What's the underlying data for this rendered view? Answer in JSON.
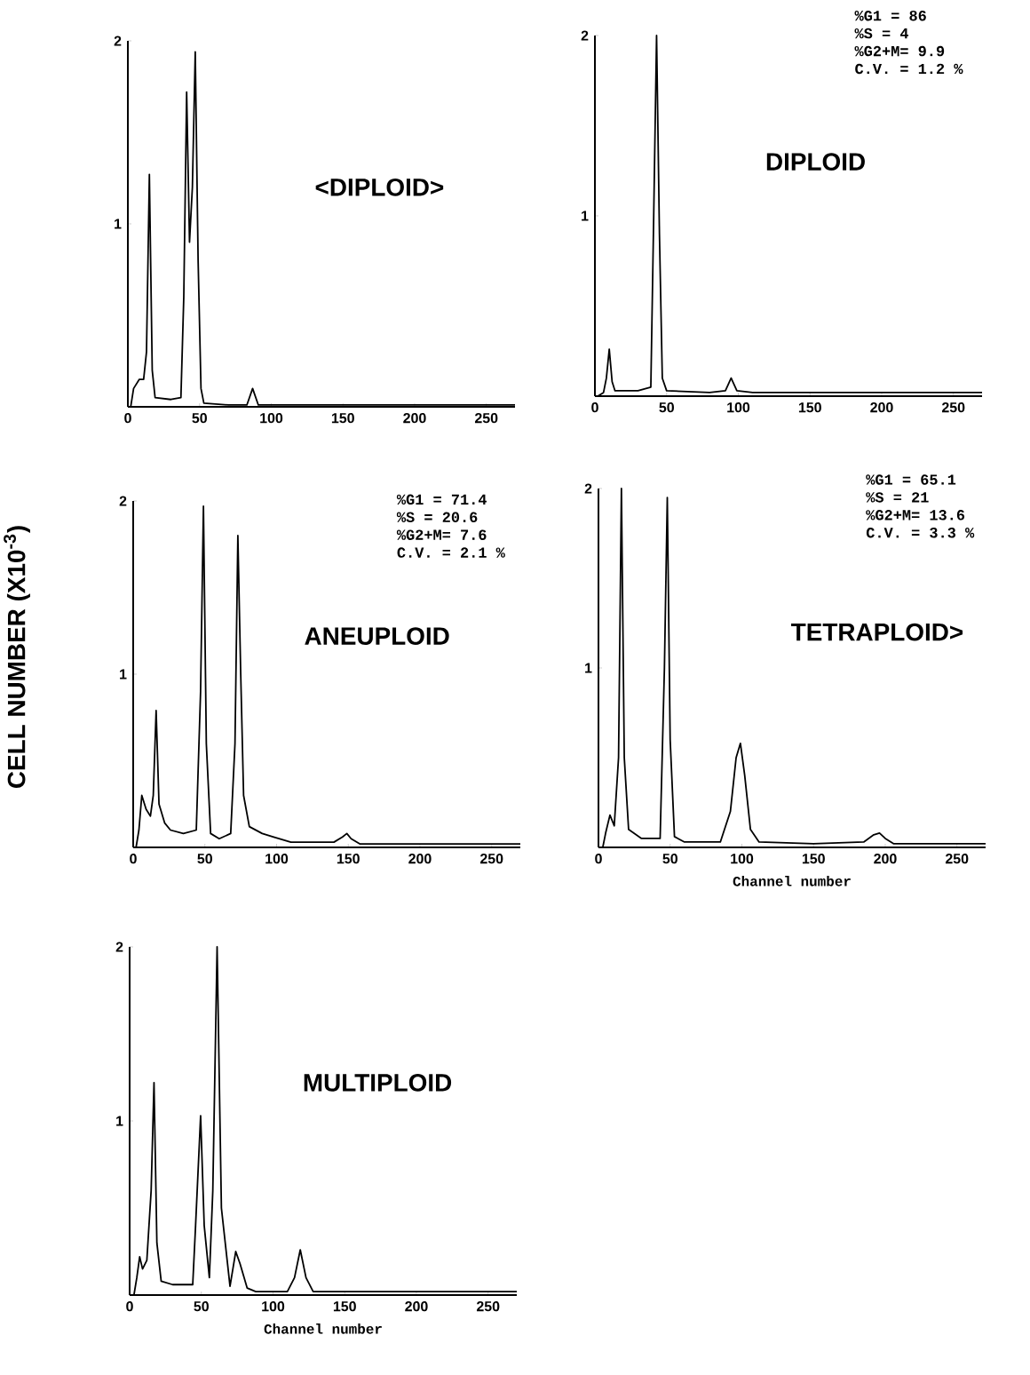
{
  "chart_data": [
    {
      "type": "line",
      "title": "<DIPLOID>",
      "xlim": [
        0,
        270
      ],
      "ylim": [
        0,
        2
      ],
      "xticks": [
        0,
        50,
        100,
        150,
        200,
        250
      ],
      "yticks": [
        1,
        2
      ],
      "series": [
        {
          "color": "#000000",
          "x": [
            2,
            4,
            8,
            11,
            13,
            15,
            17,
            19,
            30,
            37,
            39,
            41,
            43,
            45,
            47,
            49,
            51,
            53,
            70,
            83,
            87,
            91,
            150,
            270
          ],
          "values": [
            0,
            0.1,
            0.15,
            0.15,
            0.3,
            1.27,
            0.2,
            0.05,
            0.04,
            0.05,
            0.6,
            1.72,
            0.9,
            1.2,
            1.94,
            0.8,
            0.1,
            0.02,
            0.01,
            0.01,
            0.1,
            0.01,
            0.01,
            0.01
          ]
        }
      ]
    },
    {
      "type": "line",
      "title": "DIPLOID",
      "xlim": [
        0,
        270
      ],
      "ylim": [
        0,
        2
      ],
      "xticks": [
        0,
        50,
        100,
        150,
        200,
        250
      ],
      "yticks": [
        1,
        2
      ],
      "annotations": [
        "%G1 = 86",
        "%S = 4",
        "%G2+M= 9.9",
        "C.V. = 1.2 %"
      ],
      "series": [
        {
          "color": "#000000",
          "x": [
            2,
            6,
            8,
            10,
            12,
            14,
            30,
            39,
            41,
            43,
            45,
            47,
            50,
            80,
            91,
            95,
            99,
            110,
            270
          ],
          "values": [
            0,
            0.02,
            0.1,
            0.26,
            0.08,
            0.03,
            0.03,
            0.05,
            1.0,
            2.0,
            0.9,
            0.1,
            0.03,
            0.02,
            0.03,
            0.1,
            0.03,
            0.02,
            0.02
          ]
        }
      ]
    },
    {
      "type": "line",
      "title": "ANEUPLOID",
      "ylabel": "CELL NUMBER (X10$^{-3}$)",
      "xlim": [
        0,
        270
      ],
      "ylim": [
        0,
        2
      ],
      "xticks": [
        0,
        50,
        100,
        150,
        200,
        250
      ],
      "yticks": [
        1,
        2
      ],
      "annotations": [
        "%G1 = 71.4",
        "%S = 20.6",
        "%G2+M= 7.6",
        "C.V. = 2.1 %"
      ],
      "series": [
        {
          "color": "#000000",
          "x": [
            2,
            4,
            6,
            9,
            12,
            14,
            16,
            18,
            22,
            26,
            35,
            44,
            47,
            49,
            51,
            54,
            60,
            68,
            71,
            73,
            75,
            77,
            81,
            90,
            98,
            110,
            140,
            146,
            149,
            152,
            158,
            200,
            270
          ],
          "values": [
            0,
            0.1,
            0.3,
            0.22,
            0.18,
            0.3,
            0.79,
            0.25,
            0.14,
            0.1,
            0.08,
            0.1,
            0.9,
            1.97,
            0.6,
            0.08,
            0.05,
            0.08,
            0.6,
            1.8,
            1.0,
            0.3,
            0.12,
            0.08,
            0.06,
            0.03,
            0.03,
            0.06,
            0.08,
            0.05,
            0.02,
            0.02,
            0.02
          ]
        }
      ]
    },
    {
      "type": "line",
      "title": "TETRAPLOID>",
      "xlabel": "Channel number",
      "xlim": [
        0,
        270
      ],
      "ylim": [
        0,
        2
      ],
      "xticks": [
        0,
        50,
        100,
        150,
        200,
        250
      ],
      "yticks": [
        1,
        2
      ],
      "annotations": [
        "%G1 = 65.1",
        "%S = 21",
        "%G2+M= 13.6",
        "C.V. = 3.3 %"
      ],
      "series": [
        {
          "color": "#000000",
          "x": [
            3,
            5,
            8,
            11,
            14,
            16,
            18,
            21,
            30,
            43,
            46,
            48,
            50,
            53,
            60,
            85,
            92,
            96,
            99,
            102,
            106,
            112,
            150,
            185,
            192,
            196,
            200,
            206,
            270
          ],
          "values": [
            0,
            0.08,
            0.18,
            0.12,
            0.5,
            2.0,
            0.5,
            0.1,
            0.05,
            0.05,
            1.0,
            1.95,
            0.6,
            0.06,
            0.03,
            0.03,
            0.2,
            0.5,
            0.58,
            0.4,
            0.1,
            0.03,
            0.02,
            0.03,
            0.07,
            0.08,
            0.05,
            0.02,
            0.02
          ]
        }
      ]
    },
    {
      "type": "line",
      "title": "MULTIPLOID",
      "xlabel": "Channel number",
      "xlim": [
        0,
        270
      ],
      "ylim": [
        0,
        2
      ],
      "xticks": [
        0,
        50,
        100,
        150,
        200,
        250
      ],
      "yticks": [
        1,
        2
      ],
      "series": [
        {
          "color": "#000000",
          "x": [
            3,
            5,
            7,
            9,
            12,
            15,
            17,
            19,
            22,
            30,
            44,
            46,
            49.5,
            52,
            55.6,
            58,
            61,
            64,
            70,
            72,
            74,
            77,
            82,
            88,
            110,
            115,
            119,
            123,
            128,
            150,
            270
          ],
          "values": [
            0,
            0.1,
            0.22,
            0.15,
            0.2,
            0.6,
            1.22,
            0.3,
            0.08,
            0.06,
            0.06,
            0.4,
            1.03,
            0.4,
            0.1,
            0.6,
            2.0,
            0.5,
            0.05,
            0.15,
            0.25,
            0.18,
            0.04,
            0.02,
            0.02,
            0.1,
            0.26,
            0.1,
            0.02,
            0.02,
            0.02
          ]
        }
      ]
    }
  ]
}
